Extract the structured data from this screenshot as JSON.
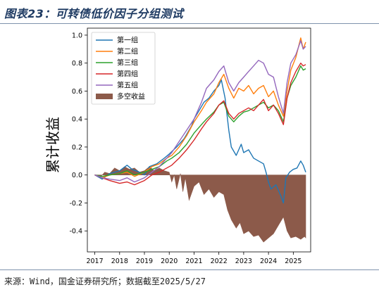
{
  "header": {
    "title": "图表23：可转债低价因子分组测试"
  },
  "footer": {
    "source": "来源：Wind，国金证券研究所；数据截至2025/5/27"
  },
  "chart_data": {
    "type": "line",
    "ylabel": "累计收益",
    "xlabel": "",
    "xlim": [
      2016.7,
      2025.7
    ],
    "ylim": [
      -0.55,
      1.05
    ],
    "xticks": [
      2017,
      2018,
      2019,
      2020,
      2021,
      2022,
      2023,
      2024,
      2025
    ],
    "xtick_labels": [
      "2017",
      "2018",
      "2019",
      "2020",
      "2021",
      "2022",
      "2023",
      "2024",
      "2025"
    ],
    "yticks": [
      -0.4,
      -0.2,
      0.0,
      0.2,
      0.4,
      0.6,
      0.8,
      1.0
    ],
    "ytick_labels": [
      "-0.4",
      "-0.2",
      "0.0",
      "0.2",
      "0.4",
      "0.6",
      "0.8",
      "1.0"
    ],
    "legend_position": "top-left",
    "series": [
      {
        "name": "第一组",
        "color": "#1f77b4",
        "points": [
          [
            2017.0,
            0.0
          ],
          [
            2017.3,
            -0.03
          ],
          [
            2017.6,
            0.01
          ],
          [
            2018.0,
            0.03
          ],
          [
            2018.3,
            0.07
          ],
          [
            2018.5,
            0.04
          ],
          [
            2018.8,
            0.02
          ],
          [
            2019.0,
            0.0
          ],
          [
            2019.2,
            0.06
          ],
          [
            2019.5,
            0.08
          ],
          [
            2019.8,
            0.12
          ],
          [
            2020.0,
            0.15
          ],
          [
            2020.3,
            0.2
          ],
          [
            2020.6,
            0.26
          ],
          [
            2020.9,
            0.35
          ],
          [
            2021.0,
            0.4
          ],
          [
            2021.2,
            0.46
          ],
          [
            2021.4,
            0.52
          ],
          [
            2021.6,
            0.55
          ],
          [
            2021.8,
            0.6
          ],
          [
            2022.0,
            0.64
          ],
          [
            2022.1,
            0.68
          ],
          [
            2022.25,
            0.55
          ],
          [
            2022.4,
            0.32
          ],
          [
            2022.5,
            0.2
          ],
          [
            2022.7,
            0.14
          ],
          [
            2022.9,
            0.22
          ],
          [
            2023.0,
            0.16
          ],
          [
            2023.2,
            0.18
          ],
          [
            2023.4,
            0.12
          ],
          [
            2023.6,
            0.1
          ],
          [
            2023.8,
            0.08
          ],
          [
            2023.9,
            0.02
          ],
          [
            2024.0,
            -0.05
          ],
          [
            2024.1,
            -0.1
          ],
          [
            2024.3,
            -0.07
          ],
          [
            2024.5,
            -0.15
          ],
          [
            2024.6,
            -0.2
          ],
          [
            2024.7,
            -0.02
          ],
          [
            2024.85,
            0.02
          ],
          [
            2025.0,
            0.04
          ],
          [
            2025.15,
            0.05
          ],
          [
            2025.3,
            0.1
          ],
          [
            2025.4,
            0.07
          ],
          [
            2025.5,
            0.02
          ]
        ]
      },
      {
        "name": "第二组",
        "color": "#ff7f0e",
        "points": [
          [
            2017.0,
            0.0
          ],
          [
            2017.3,
            -0.02
          ],
          [
            2017.6,
            0.0
          ],
          [
            2018.0,
            0.01
          ],
          [
            2018.3,
            0.02
          ],
          [
            2018.6,
            -0.01
          ],
          [
            2019.0,
            0.02
          ],
          [
            2019.3,
            0.06
          ],
          [
            2019.6,
            0.08
          ],
          [
            2019.9,
            0.12
          ],
          [
            2020.1,
            0.14
          ],
          [
            2020.4,
            0.2
          ],
          [
            2020.7,
            0.28
          ],
          [
            2021.0,
            0.38
          ],
          [
            2021.3,
            0.46
          ],
          [
            2021.5,
            0.52
          ],
          [
            2021.8,
            0.58
          ],
          [
            2022.0,
            0.66
          ],
          [
            2022.2,
            0.72
          ],
          [
            2022.4,
            0.62
          ],
          [
            2022.6,
            0.55
          ],
          [
            2022.8,
            0.62
          ],
          [
            2023.0,
            0.6
          ],
          [
            2023.2,
            0.64
          ],
          [
            2023.4,
            0.58
          ],
          [
            2023.6,
            0.62
          ],
          [
            2023.8,
            0.64
          ],
          [
            2024.0,
            0.56
          ],
          [
            2024.2,
            0.6
          ],
          [
            2024.4,
            0.5
          ],
          [
            2024.6,
            0.42
          ],
          [
            2024.75,
            0.6
          ],
          [
            2024.9,
            0.75
          ],
          [
            2025.1,
            0.84
          ],
          [
            2025.3,
            0.98
          ],
          [
            2025.4,
            0.9
          ],
          [
            2025.5,
            0.95
          ]
        ]
      },
      {
        "name": "第三组",
        "color": "#2ca02c",
        "points": [
          [
            2017.0,
            0.0
          ],
          [
            2017.3,
            -0.01
          ],
          [
            2017.6,
            0.0
          ],
          [
            2018.0,
            0.01
          ],
          [
            2018.3,
            0.03
          ],
          [
            2018.6,
            0.0
          ],
          [
            2019.0,
            0.02
          ],
          [
            2019.3,
            0.04
          ],
          [
            2019.6,
            0.06
          ],
          [
            2019.9,
            0.1
          ],
          [
            2020.1,
            0.12
          ],
          [
            2020.4,
            0.16
          ],
          [
            2020.7,
            0.22
          ],
          [
            2021.0,
            0.3
          ],
          [
            2021.3,
            0.36
          ],
          [
            2021.5,
            0.4
          ],
          [
            2021.8,
            0.45
          ],
          [
            2022.0,
            0.5
          ],
          [
            2022.2,
            0.52
          ],
          [
            2022.4,
            0.42
          ],
          [
            2022.6,
            0.38
          ],
          [
            2022.8,
            0.42
          ],
          [
            2023.0,
            0.45
          ],
          [
            2023.2,
            0.46
          ],
          [
            2023.4,
            0.48
          ],
          [
            2023.6,
            0.5
          ],
          [
            2023.8,
            0.52
          ],
          [
            2024.0,
            0.48
          ],
          [
            2024.2,
            0.5
          ],
          [
            2024.4,
            0.46
          ],
          [
            2024.6,
            0.38
          ],
          [
            2024.75,
            0.55
          ],
          [
            2024.9,
            0.64
          ],
          [
            2025.1,
            0.7
          ],
          [
            2025.3,
            0.78
          ],
          [
            2025.4,
            0.75
          ],
          [
            2025.5,
            0.76
          ]
        ]
      },
      {
        "name": "第四组",
        "color": "#d62728",
        "points": [
          [
            2017.0,
            0.0
          ],
          [
            2017.3,
            -0.02
          ],
          [
            2017.6,
            -0.04
          ],
          [
            2018.0,
            -0.06
          ],
          [
            2018.3,
            -0.05
          ],
          [
            2018.6,
            -0.07
          ],
          [
            2019.0,
            -0.04
          ],
          [
            2019.3,
            0.0
          ],
          [
            2019.6,
            0.02
          ],
          [
            2019.9,
            0.05
          ],
          [
            2020.1,
            0.07
          ],
          [
            2020.4,
            0.12
          ],
          [
            2020.7,
            0.18
          ],
          [
            2021.0,
            0.25
          ],
          [
            2021.3,
            0.33
          ],
          [
            2021.5,
            0.38
          ],
          [
            2021.8,
            0.44
          ],
          [
            2022.0,
            0.5
          ],
          [
            2022.2,
            0.53
          ],
          [
            2022.4,
            0.44
          ],
          [
            2022.6,
            0.4
          ],
          [
            2022.8,
            0.44
          ],
          [
            2023.0,
            0.46
          ],
          [
            2023.2,
            0.48
          ],
          [
            2023.4,
            0.46
          ],
          [
            2023.6,
            0.5
          ],
          [
            2023.8,
            0.54
          ],
          [
            2024.0,
            0.46
          ],
          [
            2024.2,
            0.5
          ],
          [
            2024.4,
            0.44
          ],
          [
            2024.6,
            0.36
          ],
          [
            2024.75,
            0.55
          ],
          [
            2024.9,
            0.66
          ],
          [
            2025.1,
            0.74
          ],
          [
            2025.3,
            0.8
          ],
          [
            2025.4,
            0.78
          ],
          [
            2025.5,
            0.79
          ]
        ]
      },
      {
        "name": "第五组",
        "color": "#9467bd",
        "points": [
          [
            2017.0,
            0.0
          ],
          [
            2017.3,
            -0.02
          ],
          [
            2017.6,
            -0.03
          ],
          [
            2018.0,
            -0.04
          ],
          [
            2018.3,
            -0.02
          ],
          [
            2018.6,
            -0.05
          ],
          [
            2019.0,
            -0.02
          ],
          [
            2019.3,
            0.02
          ],
          [
            2019.6,
            0.06
          ],
          [
            2019.9,
            0.12
          ],
          [
            2020.1,
            0.16
          ],
          [
            2020.4,
            0.24
          ],
          [
            2020.7,
            0.32
          ],
          [
            2021.0,
            0.4
          ],
          [
            2021.3,
            0.52
          ],
          [
            2021.5,
            0.62
          ],
          [
            2021.8,
            0.68
          ],
          [
            2022.0,
            0.74
          ],
          [
            2022.2,
            0.78
          ],
          [
            2022.4,
            0.66
          ],
          [
            2022.6,
            0.6
          ],
          [
            2022.8,
            0.66
          ],
          [
            2023.0,
            0.7
          ],
          [
            2023.2,
            0.74
          ],
          [
            2023.4,
            0.78
          ],
          [
            2023.6,
            0.82
          ],
          [
            2023.8,
            0.8
          ],
          [
            2024.0,
            0.72
          ],
          [
            2024.2,
            0.7
          ],
          [
            2024.4,
            0.56
          ],
          [
            2024.6,
            0.44
          ],
          [
            2024.75,
            0.66
          ],
          [
            2024.9,
            0.8
          ],
          [
            2025.1,
            0.86
          ],
          [
            2025.3,
            0.96
          ],
          [
            2025.4,
            0.9
          ],
          [
            2025.5,
            0.92
          ]
        ]
      }
    ],
    "area": {
      "name": "多空收益",
      "color": "#8c5a4a",
      "points": [
        [
          2017.0,
          0.0
        ],
        [
          2017.2,
          -0.02
        ],
        [
          2017.4,
          0.02
        ],
        [
          2017.6,
          0.01
        ],
        [
          2017.8,
          0.05
        ],
        [
          2018.0,
          0.03
        ],
        [
          2018.2,
          0.06
        ],
        [
          2018.4,
          0.04
        ],
        [
          2018.6,
          0.05
        ],
        [
          2018.8,
          0.02
        ],
        [
          2019.0,
          0.03
        ],
        [
          2019.2,
          0.06
        ],
        [
          2019.4,
          0.03
        ],
        [
          2019.6,
          0.05
        ],
        [
          2019.8,
          0.03
        ],
        [
          2020.0,
          0.02
        ],
        [
          2020.1,
          -0.05
        ],
        [
          2020.2,
          0.0
        ],
        [
          2020.3,
          -0.1
        ],
        [
          2020.45,
          0.01
        ],
        [
          2020.55,
          -0.12
        ],
        [
          2020.65,
          -0.02
        ],
        [
          2020.8,
          -0.18
        ],
        [
          2021.0,
          -0.08
        ],
        [
          2021.2,
          -0.05
        ],
        [
          2021.4,
          -0.14
        ],
        [
          2021.6,
          -0.1
        ],
        [
          2021.8,
          -0.16
        ],
        [
          2022.0,
          -0.12
        ],
        [
          2022.2,
          -0.14
        ],
        [
          2022.35,
          -0.25
        ],
        [
          2022.5,
          -0.32
        ],
        [
          2022.7,
          -0.38
        ],
        [
          2022.85,
          -0.34
        ],
        [
          2023.0,
          -0.42
        ],
        [
          2023.2,
          -0.4
        ],
        [
          2023.4,
          -0.44
        ],
        [
          2023.6,
          -0.43
        ],
        [
          2023.8,
          -0.48
        ],
        [
          2024.0,
          -0.45
        ],
        [
          2024.2,
          -0.42
        ],
        [
          2024.4,
          -0.36
        ],
        [
          2024.6,
          -0.3
        ],
        [
          2024.75,
          -0.4
        ],
        [
          2024.9,
          -0.45
        ],
        [
          2025.1,
          -0.44
        ],
        [
          2025.3,
          -0.46
        ],
        [
          2025.45,
          -0.44
        ],
        [
          2025.5,
          -0.45
        ]
      ]
    }
  }
}
